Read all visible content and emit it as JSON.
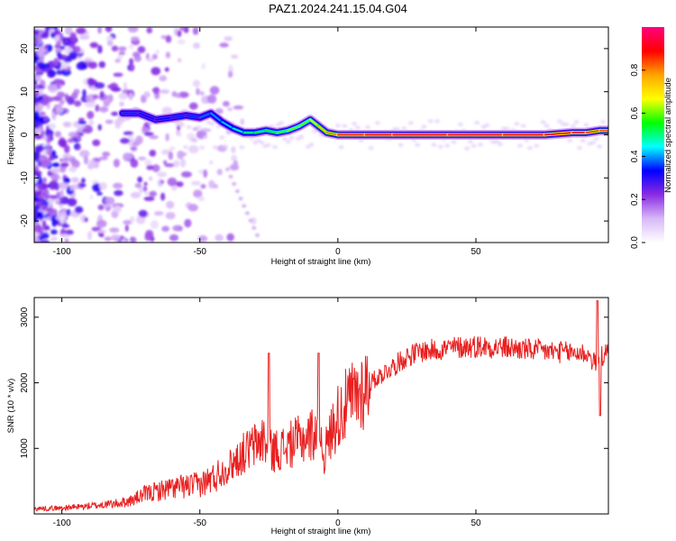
{
  "title": "PAZ1.2024.241.15.04.G04",
  "chart_data": [
    {
      "type": "heatmap",
      "xlabel": "Height of straight line (km)",
      "ylabel": "Frequency (Hz)",
      "xlim": [
        -110,
        98
      ],
      "ylim": [
        -25,
        25
      ],
      "xticks": [
        -100,
        -50,
        0,
        50
      ],
      "yticks": [
        20,
        10,
        0,
        -10,
        -20
      ],
      "colorbar": {
        "label": "Normalized spectral amplitude",
        "range": [
          0,
          1
        ],
        "ticks": [
          "0.0",
          "0.2",
          "0.4",
          "0.6",
          "0.8"
        ],
        "colors": [
          "#ffffff",
          "#d8b8f8",
          "#8a2be2",
          "#0000ff",
          "#00ffff",
          "#00ff00",
          "#ffff00",
          "#ffa500",
          "#ff0000",
          "#ff0080"
        ]
      },
      "ridge": {
        "x": [
          -78,
          -72,
          -66,
          -60,
          -55,
          -50,
          -46,
          -42,
          -38,
          -34,
          -30,
          -26,
          -22,
          -18,
          -14,
          -10,
          -7,
          -4,
          0,
          10,
          20,
          40,
          60,
          75,
          85,
          90,
          95,
          98
        ],
        "y": [
          5,
          5,
          3.5,
          4,
          4.5,
          4,
          5,
          3,
          1.5,
          0.5,
          0.5,
          1,
          0.5,
          1,
          2,
          3.5,
          2,
          0.5,
          0,
          0,
          0,
          0,
          0,
          0,
          0.5,
          0.5,
          1,
          1
        ],
        "amplitude": [
          0.35,
          0.35,
          0.3,
          0.35,
          0.35,
          0.35,
          0.4,
          0.4,
          0.45,
          0.5,
          0.5,
          0.55,
          0.55,
          0.6,
          0.6,
          0.6,
          0.7,
          0.75,
          0.85,
          0.9,
          0.92,
          0.92,
          0.92,
          0.9,
          0.9,
          0.85,
          0.85,
          0.8
        ]
      }
    },
    {
      "type": "line",
      "xlabel": "Height of straight line (km)",
      "ylabel": "SNR (10 * v/v)",
      "xlim": [
        -110,
        98
      ],
      "ylim": [
        0,
        3300
      ],
      "xticks": [
        -100,
        -50,
        0,
        50
      ],
      "yticks": [
        1000,
        2000,
        3000
      ],
      "color": "#e82020",
      "series": [
        {
          "x": [
            -110,
            -100,
            -90,
            -80,
            -75,
            -70,
            -65,
            -60,
            -55,
            -50,
            -45,
            -40,
            -35,
            -30,
            -27,
            -25,
            -20,
            -15,
            -10,
            -7,
            -5,
            -2,
            0,
            5,
            10,
            15,
            20,
            25,
            30,
            35,
            40,
            50,
            60,
            70,
            80,
            90,
            93,
            95,
            98
          ],
          "y": [
            80,
            90,
            120,
            160,
            200,
            300,
            350,
            400,
            420,
            450,
            550,
            700,
            900,
            1050,
            1150,
            950,
            1000,
            1100,
            1200,
            1300,
            900,
            1300,
            1500,
            1750,
            1950,
            2100,
            2250,
            2400,
            2480,
            2500,
            2530,
            2560,
            2540,
            2500,
            2470,
            2450,
            2300,
            2400,
            2450
          ]
        }
      ],
      "spikes": [
        {
          "x": -25,
          "y": 2450
        },
        {
          "x": -7,
          "y": 2450
        },
        {
          "x": 94,
          "y": 3250
        },
        {
          "x": 95,
          "y": 1500
        }
      ]
    }
  ]
}
